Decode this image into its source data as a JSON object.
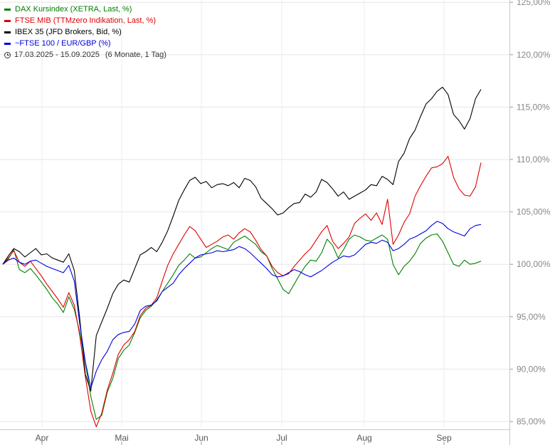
{
  "chart_data": {
    "type": "line",
    "date_range": "17.03.2025 - 15.09.2025",
    "interval": "(6 Monate, 1 Tag)",
    "x_ticks": [
      "Apr",
      "Mai",
      "Jun",
      "Jul",
      "Aug",
      "Sep"
    ],
    "y_ticks": [
      "85,00%",
      "90,00%",
      "95,00%",
      "100,00%",
      "105,00%",
      "110,00%",
      "115,00%",
      "120,00%",
      "125,00%"
    ],
    "ylim": [
      84,
      125
    ],
    "grid": true,
    "legend_position": "top-left",
    "series": [
      {
        "name": "DAX Kursindex (XETRA, Last, %)",
        "color": "#008000",
        "values": [
          100,
          100.5,
          101.4,
          99.5,
          99.2,
          99.6,
          99.0,
          98.3,
          97.6,
          96.8,
          96.2,
          95.4,
          96.9,
          95.7,
          93.5,
          90.6,
          87.4,
          85.2,
          85.6,
          87.8,
          89.1,
          91.0,
          91.8,
          92.3,
          93.5,
          94.9,
          95.6,
          96.0,
          96.6,
          97.4,
          98.2,
          99.0,
          99.9,
          100.4,
          101.0,
          100.6,
          100.7,
          101.1,
          101.5,
          101.8,
          101.6,
          101.4,
          102.1,
          102.4,
          102.7,
          102.3,
          101.9,
          101.2,
          100.8,
          99.6,
          98.6,
          97.6,
          97.2,
          98.1,
          99.0,
          99.8,
          100.4,
          100.3,
          101.1,
          102.4,
          101.8,
          100.6,
          101.4,
          102.4,
          102.8,
          102.6,
          102.3,
          102.2,
          102.5,
          102.8,
          102.4,
          100.0,
          99.0,
          99.8,
          100.3,
          101.0,
          102.0,
          102.5,
          102.8,
          102.9,
          102.2,
          101.1,
          100.0,
          99.8,
          100.4,
          100.0,
          100.1,
          100.3
        ]
      },
      {
        "name": "FTSE MIB (TTMzero Indikation, Last, %)",
        "color": "#e00000",
        "values": [
          100,
          100.6,
          101.3,
          100.2,
          99.8,
          100.3,
          99.6,
          98.9,
          98.1,
          97.4,
          96.7,
          95.9,
          97.3,
          96.1,
          93.2,
          89.3,
          86.0,
          84.5,
          85.8,
          88.0,
          89.6,
          91.4,
          92.3,
          92.8,
          93.6,
          95.1,
          95.8,
          96.1,
          96.8,
          98.4,
          99.9,
          101.0,
          101.9,
          102.8,
          103.6,
          103.2,
          102.4,
          101.6,
          101.9,
          102.2,
          102.6,
          102.8,
          102.4,
          103.0,
          103.4,
          103.1,
          102.3,
          101.4,
          100.8,
          99.8,
          99.2,
          98.9,
          99.1,
          99.8,
          100.4,
          101.0,
          101.5,
          102.3,
          103.1,
          103.7,
          102.2,
          101.5,
          102.0,
          102.6,
          103.9,
          104.4,
          104.8,
          104.2,
          104.9,
          103.8,
          106.2,
          101.9,
          102.8,
          104.0,
          104.8,
          106.5,
          107.5,
          108.4,
          109.2,
          109.3,
          109.6,
          110.3,
          108.3,
          107.2,
          106.6,
          106.5,
          107.4,
          109.7
        ]
      },
      {
        "name": "IBEX 35 (JFD Brokers, Bid, %)",
        "color": "#000000",
        "values": [
          100,
          100.8,
          101.5,
          101.2,
          100.7,
          101.1,
          101.5,
          100.9,
          101.0,
          100.6,
          100.4,
          100.2,
          101.0,
          99.4,
          94.8,
          89.5,
          87.9,
          93.2,
          94.5,
          95.8,
          97.2,
          98.1,
          98.5,
          98.3,
          99.6,
          100.9,
          101.2,
          101.6,
          101.2,
          102.1,
          103.2,
          104.6,
          106.1,
          107.1,
          108.0,
          108.3,
          107.7,
          107.9,
          107.3,
          107.6,
          107.7,
          107.5,
          107.8,
          107.3,
          108.2,
          108.0,
          107.4,
          106.3,
          105.8,
          105.3,
          104.7,
          104.9,
          105.4,
          105.8,
          105.9,
          106.7,
          106.4,
          106.9,
          108.1,
          107.8,
          107.2,
          106.5,
          106.9,
          106.2,
          106.5,
          106.8,
          107.1,
          107.6,
          107.5,
          108.4,
          108.1,
          107.6,
          109.8,
          110.6,
          112.0,
          112.8,
          114.1,
          115.3,
          115.8,
          116.5,
          116.9,
          116.2,
          114.3,
          113.7,
          112.9,
          113.9,
          115.8,
          116.7
        ]
      },
      {
        "name": "~FTSE 100 / EUR/GBP (%)",
        "color": "#0000e0",
        "values": [
          100,
          100.4,
          100.6,
          100.2,
          100.0,
          100.3,
          100.4,
          100.1,
          99.8,
          99.6,
          99.4,
          99.2,
          99.9,
          98.4,
          94.3,
          90.7,
          88.2,
          89.8,
          90.9,
          91.7,
          92.8,
          93.3,
          93.5,
          93.6,
          94.3,
          95.6,
          96.0,
          96.1,
          96.5,
          97.4,
          97.8,
          98.2,
          99.0,
          99.6,
          100.1,
          100.6,
          100.9,
          101.0,
          101.1,
          101.3,
          101.2,
          101.3,
          101.4,
          101.7,
          101.5,
          101.1,
          100.6,
          100.1,
          99.6,
          99.0,
          98.8,
          98.9,
          99.2,
          99.5,
          99.3,
          99.0,
          98.8,
          99.1,
          99.4,
          99.8,
          100.2,
          100.5,
          100.8,
          100.7,
          100.9,
          101.4,
          101.9,
          102.1,
          102.0,
          102.3,
          102.1,
          101.3,
          101.5,
          101.9,
          102.4,
          102.6,
          102.9,
          103.2,
          103.7,
          104.1,
          103.9,
          103.4,
          103.1,
          102.9,
          102.7,
          103.4,
          103.7,
          103.8
        ]
      }
    ]
  }
}
